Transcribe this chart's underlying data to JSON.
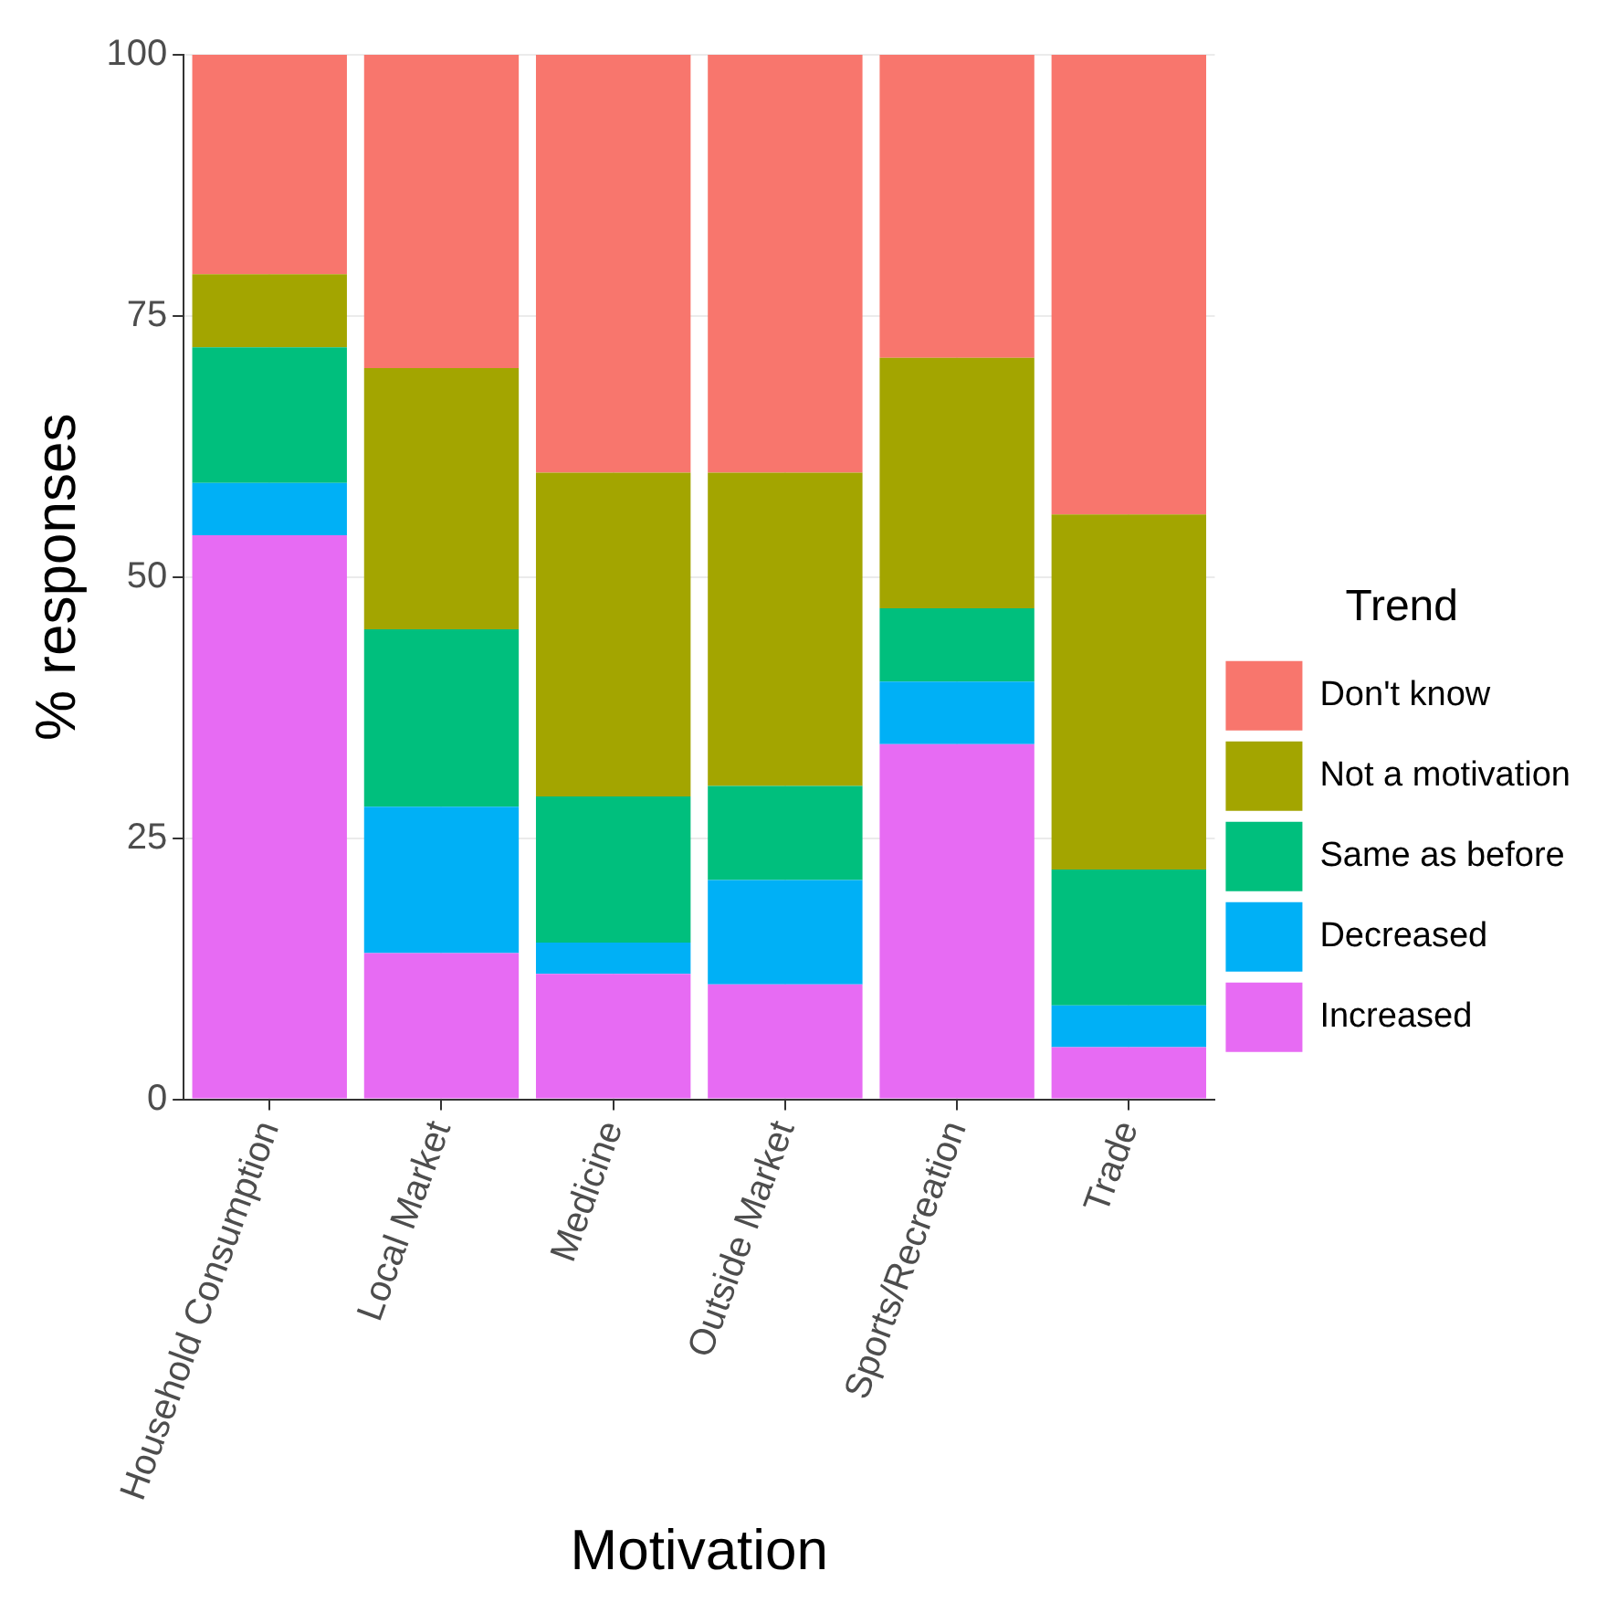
{
  "chart_data": {
    "type": "bar",
    "stacked": true,
    "xlabel": "Motivation",
    "ylabel": "% responses",
    "legend_title": "Trend",
    "legend": "right",
    "categories": [
      "Household Consumption",
      "Local Market",
      "Medicine",
      "Outside Market",
      "Sports/Recreation",
      "Trade"
    ],
    "ylim": [
      0,
      100
    ],
    "yticks": [
      0,
      25,
      50,
      75,
      100
    ],
    "grid": true,
    "series": [
      {
        "name": "Increased",
        "color": "#e76bf3",
        "values": [
          54,
          14,
          12,
          11,
          34,
          5
        ]
      },
      {
        "name": "Decreased",
        "color": "#00b0f6",
        "values": [
          5,
          14,
          3,
          10,
          6,
          4
        ]
      },
      {
        "name": "Same as before",
        "color": "#00bf7d",
        "values": [
          13,
          17,
          14,
          9,
          7,
          13
        ]
      },
      {
        "name": "Not a motivation",
        "color": "#a3a500",
        "values": [
          7,
          25,
          31,
          30,
          24,
          34
        ]
      },
      {
        "name": "Don't know",
        "color": "#f8766d",
        "values": [
          21,
          30,
          40,
          40,
          29,
          44
        ]
      }
    ]
  }
}
